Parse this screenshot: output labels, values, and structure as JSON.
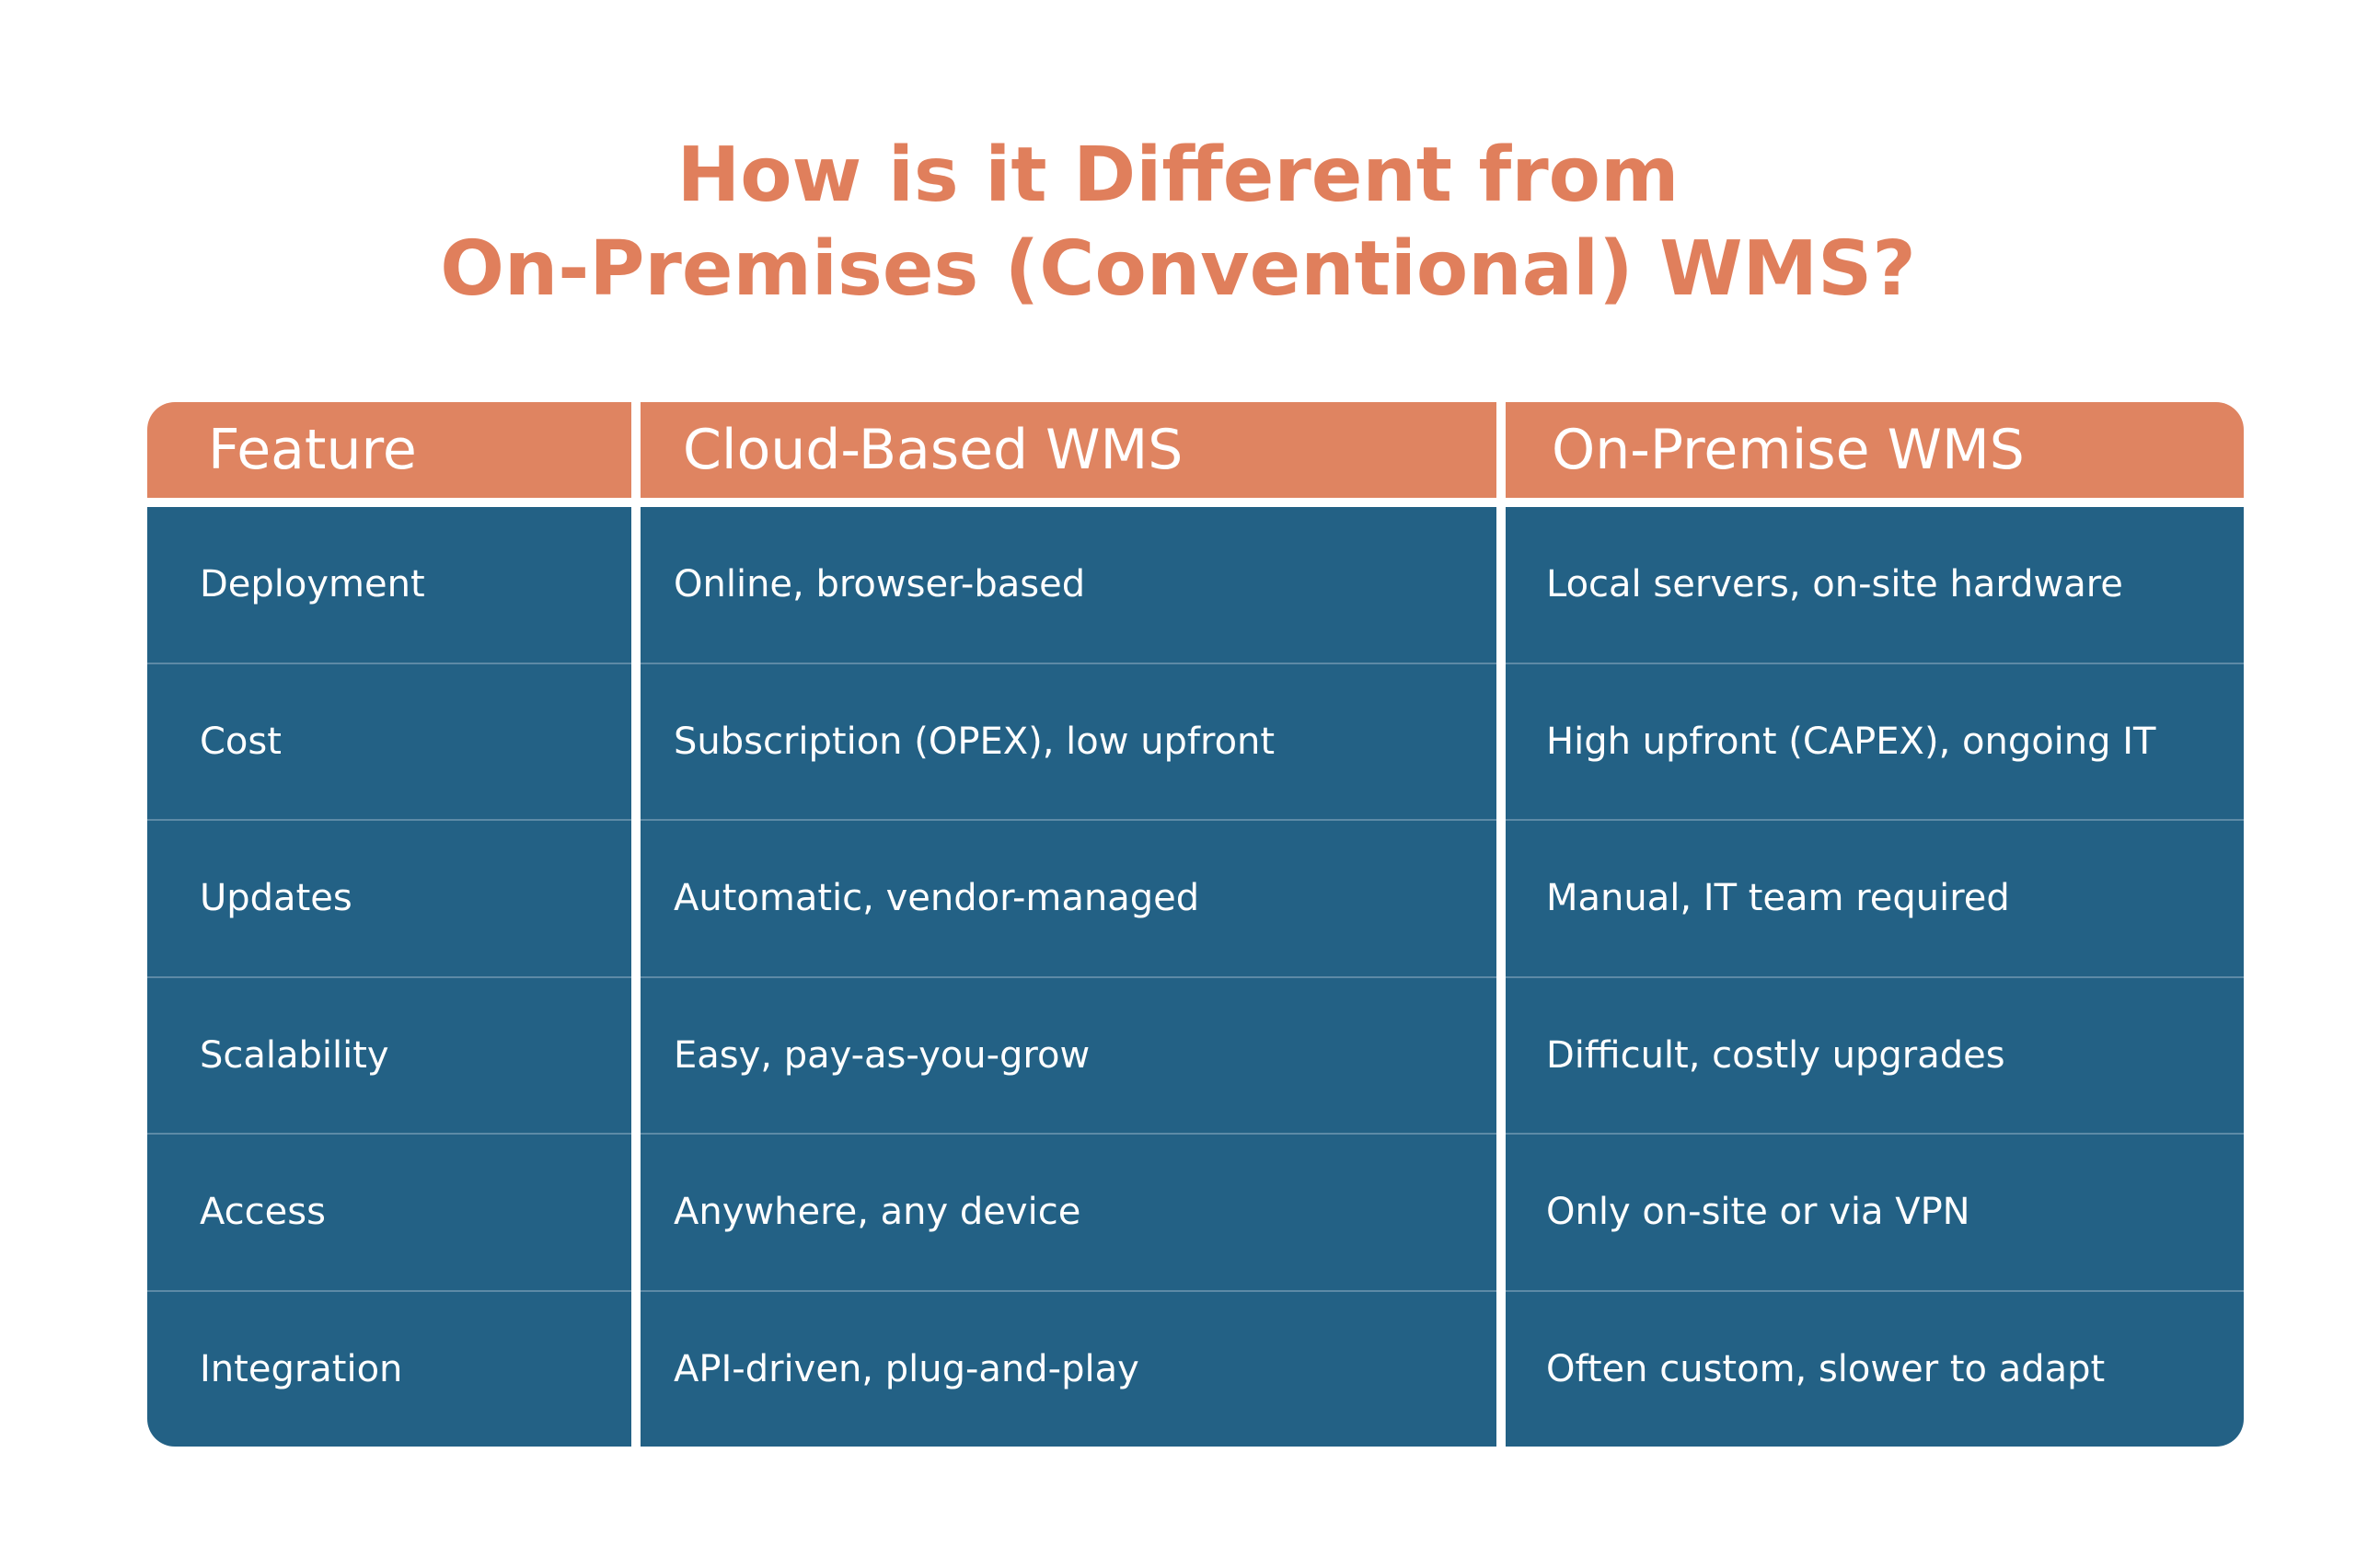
{
  "title": {
    "line1": "How is it Different from",
    "line2": "On-Premises (Conventional) WMS?"
  },
  "colors": {
    "accent": "#e07f5c",
    "header_bg": "#df8461",
    "body_bg": "#236185",
    "divider": "#5d8aa6"
  },
  "table": {
    "headers": [
      "Feature",
      "Cloud-Based WMS",
      "On-Premise WMS"
    ],
    "rows": [
      [
        "Deployment",
        "Online, browser-based",
        "Local servers, on-site hardware"
      ],
      [
        "Cost",
        "Subscription (OPEX), low upfront",
        "High upfront (CAPEX), ongoing IT"
      ],
      [
        "Updates",
        "Automatic, vendor-managed",
        "Manual, IT team required"
      ],
      [
        "Scalability",
        "Easy, pay-as-you-grow",
        "Difficult, costly upgrades"
      ],
      [
        "Access",
        "Anywhere, any device",
        "Only on-site or via VPN"
      ],
      [
        "Integration",
        "API-driven, plug-and-play",
        "Often custom, slower to adapt"
      ]
    ]
  }
}
